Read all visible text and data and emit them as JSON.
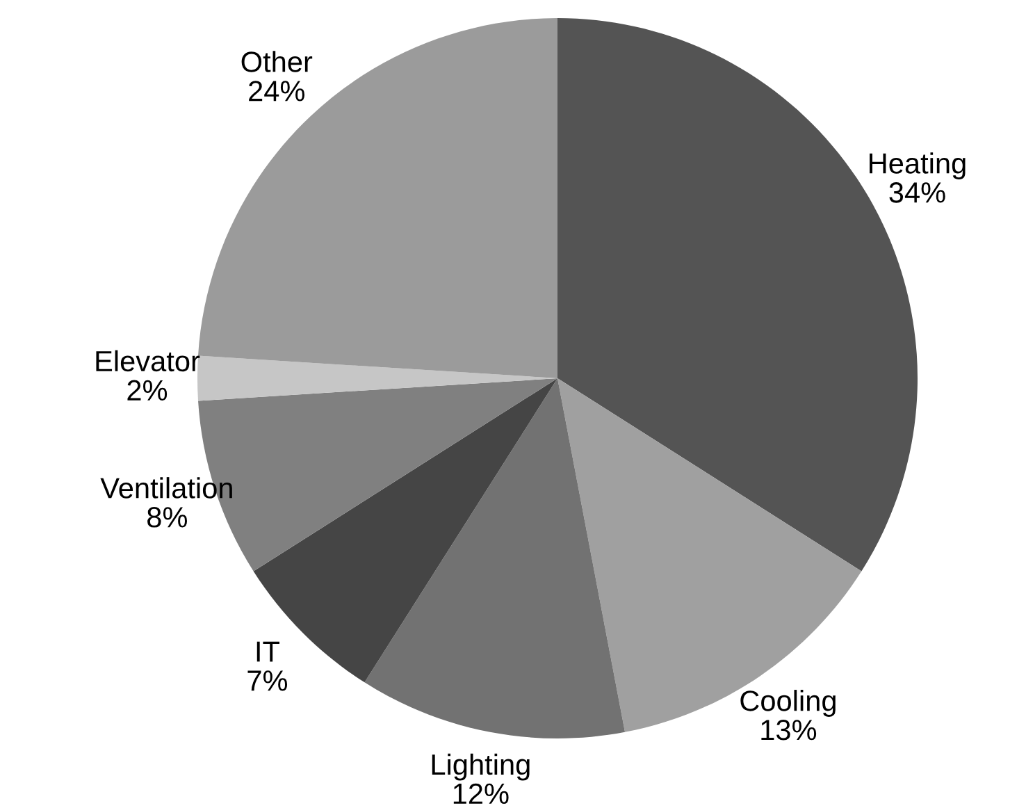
{
  "chart_data": {
    "type": "pie",
    "categories": [
      "Heating",
      "Cooling",
      "Lighting",
      "IT",
      "Ventilation",
      "Elevator",
      "Other"
    ],
    "values": [
      34,
      13,
      12,
      7,
      8,
      2,
      24
    ],
    "colors": [
      "#545454",
      "#a0a0a0",
      "#727272",
      "#454545",
      "#808080",
      "#c6c6c6",
      "#9b9b9b"
    ],
    "value_labels": [
      "34%",
      "13%",
      "12%",
      "7%",
      "8%",
      "2%",
      "24%"
    ],
    "legend": false
  }
}
